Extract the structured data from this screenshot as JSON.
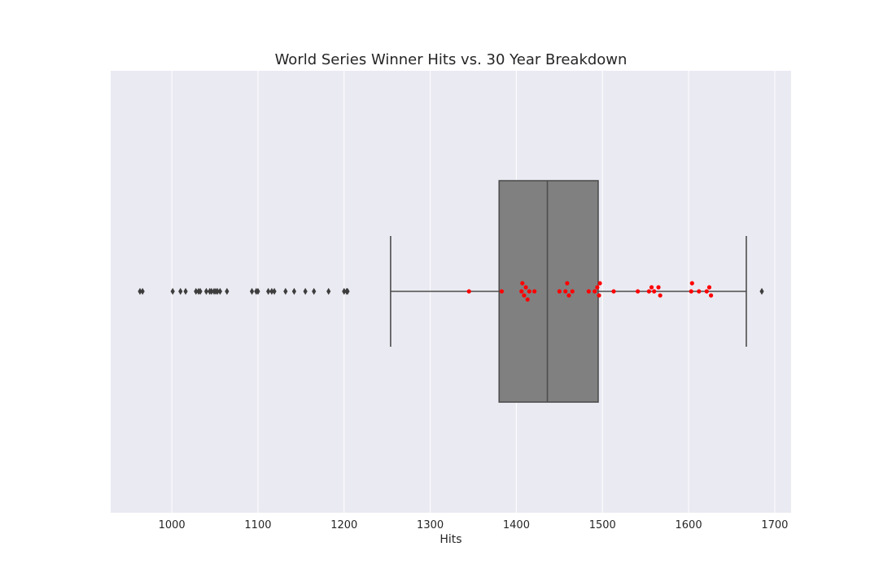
{
  "chart_data": {
    "type": "boxplot",
    "title": "World Series Winner Hits vs. 30 Year Breakdown",
    "xlabel": "Hits",
    "ylabel": "",
    "xlim": [
      929,
      1719
    ],
    "x_ticks": [
      1000,
      1100,
      1200,
      1300,
      1400,
      1500,
      1600,
      1700
    ],
    "grid": true,
    "colors": {
      "plot_background": "#eaeaf2",
      "grid": "#ffffff",
      "box_fill": "#808080",
      "box_edge": "#4d4d4d",
      "whisker": "#4d4d4d",
      "outlier": "#3d3d3d",
      "swarm_point": "#ff0000"
    },
    "box": {
      "q1": 1380,
      "median": 1436,
      "q3": 1495,
      "whisker_low": 1254,
      "whisker_high": 1667
    },
    "outliers": [
      963,
      966,
      1001,
      1010,
      1016,
      1028,
      1031,
      1033,
      1040,
      1044,
      1046,
      1049,
      1051,
      1053,
      1056,
      1064,
      1093,
      1098,
      1100,
      1112,
      1116,
      1119,
      1132,
      1142,
      1155,
      1165,
      1182,
      1200,
      1203,
      1204,
      1685
    ],
    "winner_hits": [
      1345,
      1383,
      1406,
      1407,
      1409,
      1411,
      1413,
      1415,
      1421,
      1450,
      1457,
      1459,
      1461,
      1465,
      1484,
      1491,
      1494,
      1496,
      1497,
      1513,
      1541,
      1554,
      1557,
      1560,
      1565,
      1567,
      1603,
      1604,
      1612,
      1621,
      1624,
      1626
    ]
  }
}
